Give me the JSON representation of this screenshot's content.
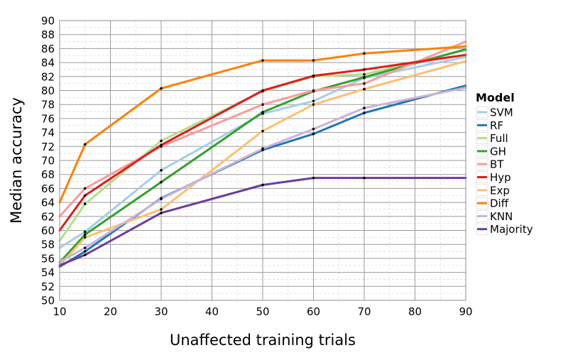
{
  "chart_data": {
    "type": "line",
    "title": "",
    "xlabel": "Unaffected training trials",
    "ylabel": "Median accuracy",
    "xlim": [
      10,
      90
    ],
    "ylim": [
      50,
      90
    ],
    "xticks": [
      10,
      20,
      30,
      40,
      50,
      60,
      70,
      80,
      90
    ],
    "yticks": [
      50,
      52,
      54,
      56,
      58,
      60,
      62,
      64,
      66,
      68,
      70,
      72,
      74,
      76,
      78,
      80,
      82,
      84,
      86,
      88,
      90
    ],
    "grid": true,
    "legend": {
      "title": "Model",
      "position": "right"
    },
    "x": [
      10,
      15,
      30,
      50,
      60,
      70,
      90
    ],
    "series": [
      {
        "name": "SVM",
        "color": "#a6cee3",
        "values": [
          57.5,
          59.8,
          68.6,
          76.7,
          78.5,
          81.8,
          84.8
        ]
      },
      {
        "name": "RF",
        "color": "#1f78b4",
        "values": [
          54.8,
          57.0,
          64.6,
          71.5,
          73.8,
          76.8,
          80.7
        ]
      },
      {
        "name": "Full",
        "color": "#b2df8a",
        "values": [
          58.5,
          63.8,
          72.8,
          79.9,
          82.0,
          82.3,
          85.8
        ]
      },
      {
        "name": "GH",
        "color": "#33a02c",
        "values": [
          55.4,
          59.4,
          66.9,
          76.9,
          79.9,
          81.9,
          85.9
        ]
      },
      {
        "name": "BT",
        "color": "#fb9a99",
        "values": [
          62.0,
          66.0,
          72.0,
          78.0,
          80.0,
          81.0,
          87.0
        ]
      },
      {
        "name": "Hyp",
        "color": "#e31a1c",
        "values": [
          60.0,
          65.0,
          72.2,
          80.0,
          82.1,
          83.0,
          85.1
        ]
      },
      {
        "name": "Exp",
        "color": "#fdbf6f",
        "values": [
          55.0,
          59.0,
          63.0,
          74.2,
          78.0,
          80.2,
          84.2
        ]
      },
      {
        "name": "Diff",
        "color": "#ff7f00",
        "values": [
          64.0,
          72.3,
          80.3,
          84.3,
          84.3,
          85.3,
          86.3
        ]
      },
      {
        "name": "KNN",
        "color": "#cab2d6",
        "values": [
          55.5,
          57.5,
          64.5,
          71.7,
          74.5,
          77.5,
          80.4
        ]
      },
      {
        "name": "Majority",
        "color": "#6a3d9a",
        "values": [
          55.0,
          56.5,
          62.5,
          66.5,
          67.5,
          67.5,
          67.5
        ]
      }
    ]
  }
}
